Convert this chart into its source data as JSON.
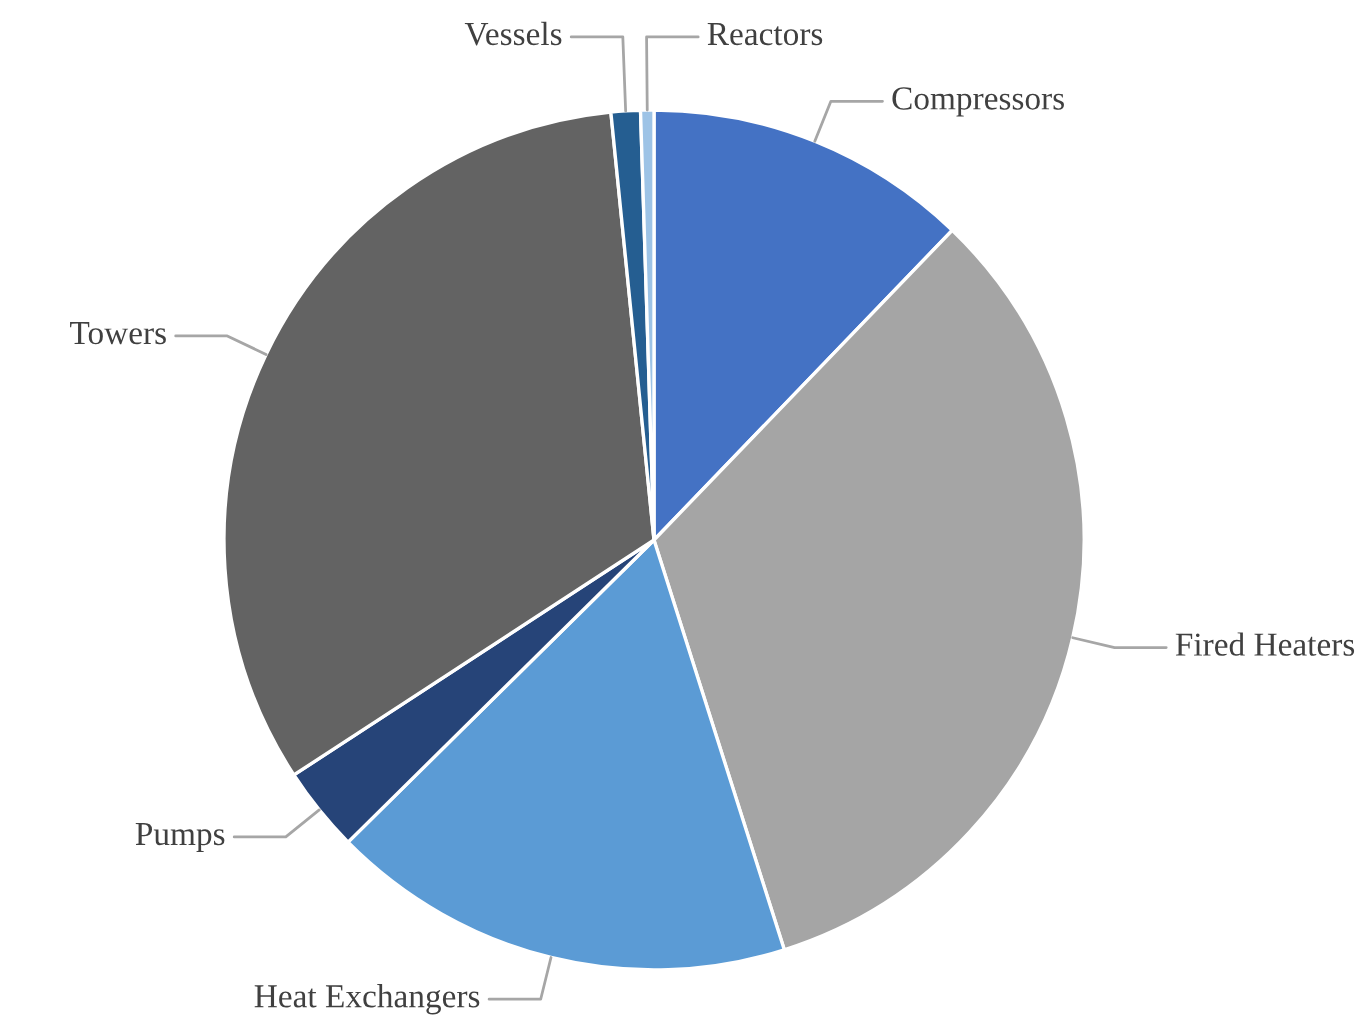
{
  "chart_data": {
    "type": "pie",
    "categories": [
      "Compressors",
      "Fired Heaters",
      "Heat Exchangers",
      "Pumps",
      "Towers",
      "Vessels",
      "Reactors"
    ],
    "values": [
      12.2,
      32.9,
      17.5,
      3.2,
      32.6,
      1.1,
      0.5
    ],
    "colors": [
      "#4472c4",
      "#a5a5a5",
      "#5b9bd5",
      "#264478",
      "#636363",
      "#255e91",
      "#9dc3e6"
    ],
    "legend": false
  }
}
